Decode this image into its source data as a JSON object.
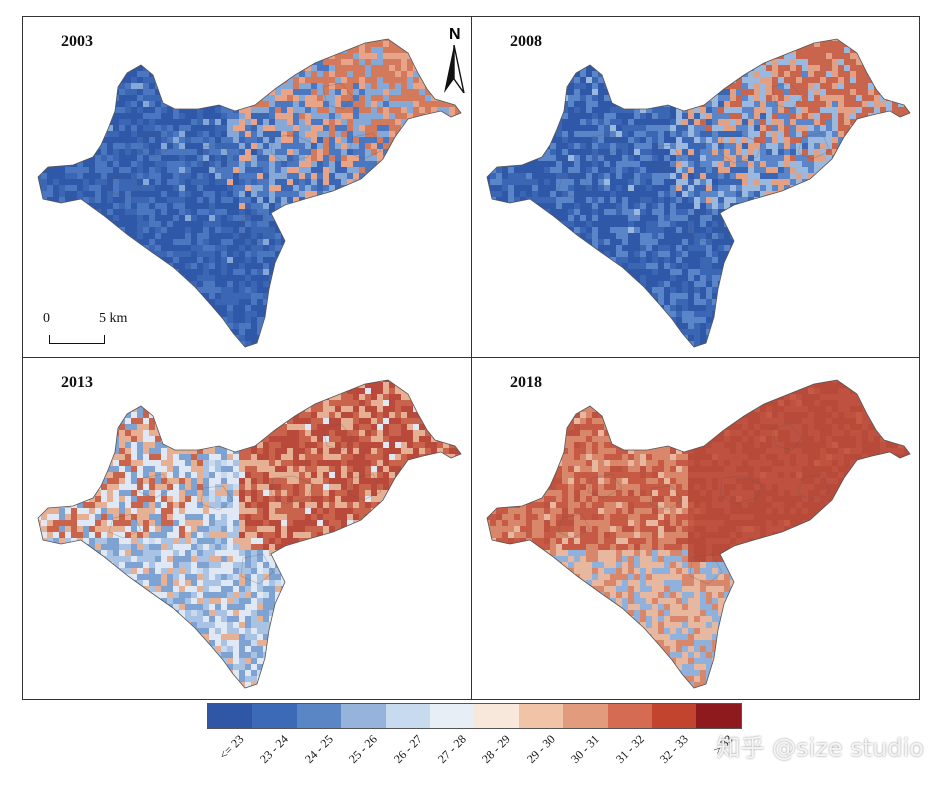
{
  "panels": [
    {
      "year": "2003",
      "palette": [
        "#2f59a8",
        "#2f59a8",
        "#3a66b4",
        "#4b77c1",
        "#86a8d6",
        "#e8a488",
        "#d47a5c"
      ]
    },
    {
      "year": "2008",
      "palette": [
        "#2f59a8",
        "#2f59a8",
        "#3a66b4",
        "#5a85c8",
        "#9bb8df",
        "#e2a184",
        "#c8654c"
      ]
    },
    {
      "year": "2013",
      "palette": [
        "#c9daee",
        "#a9c3e4",
        "#7ea3d2",
        "#dfe8f4",
        "#e6b094",
        "#c9634c",
        "#b8493b"
      ]
    },
    {
      "year": "2018",
      "palette": [
        "#b8d0ea",
        "#8fb1dc",
        "#e7b7a0",
        "#d8876b",
        "#c65a44",
        "#bf5140",
        "#b84a3a"
      ]
    }
  ],
  "north_label": "N",
  "scale": {
    "zero": "0",
    "five": "5 km"
  },
  "legend": {
    "colors": [
      "#2f57a6",
      "#3c6ab6",
      "#5a86c6",
      "#95b3db",
      "#c8dbee",
      "#e8eef6",
      "#f8e8dc",
      "#f1c4a8",
      "#e29b7c",
      "#d56b52",
      "#c2432e",
      "#8e1a1d"
    ],
    "labels": [
      "<= 23",
      "23 - 24",
      "24 - 25",
      "25 - 26",
      "26 - 27",
      "27 - 28",
      "28 - 29",
      "29 - 30",
      "30 - 31",
      "31 - 32",
      "32 - 33",
      "> 33"
    ]
  },
  "watermark": "知乎 @size studio"
}
